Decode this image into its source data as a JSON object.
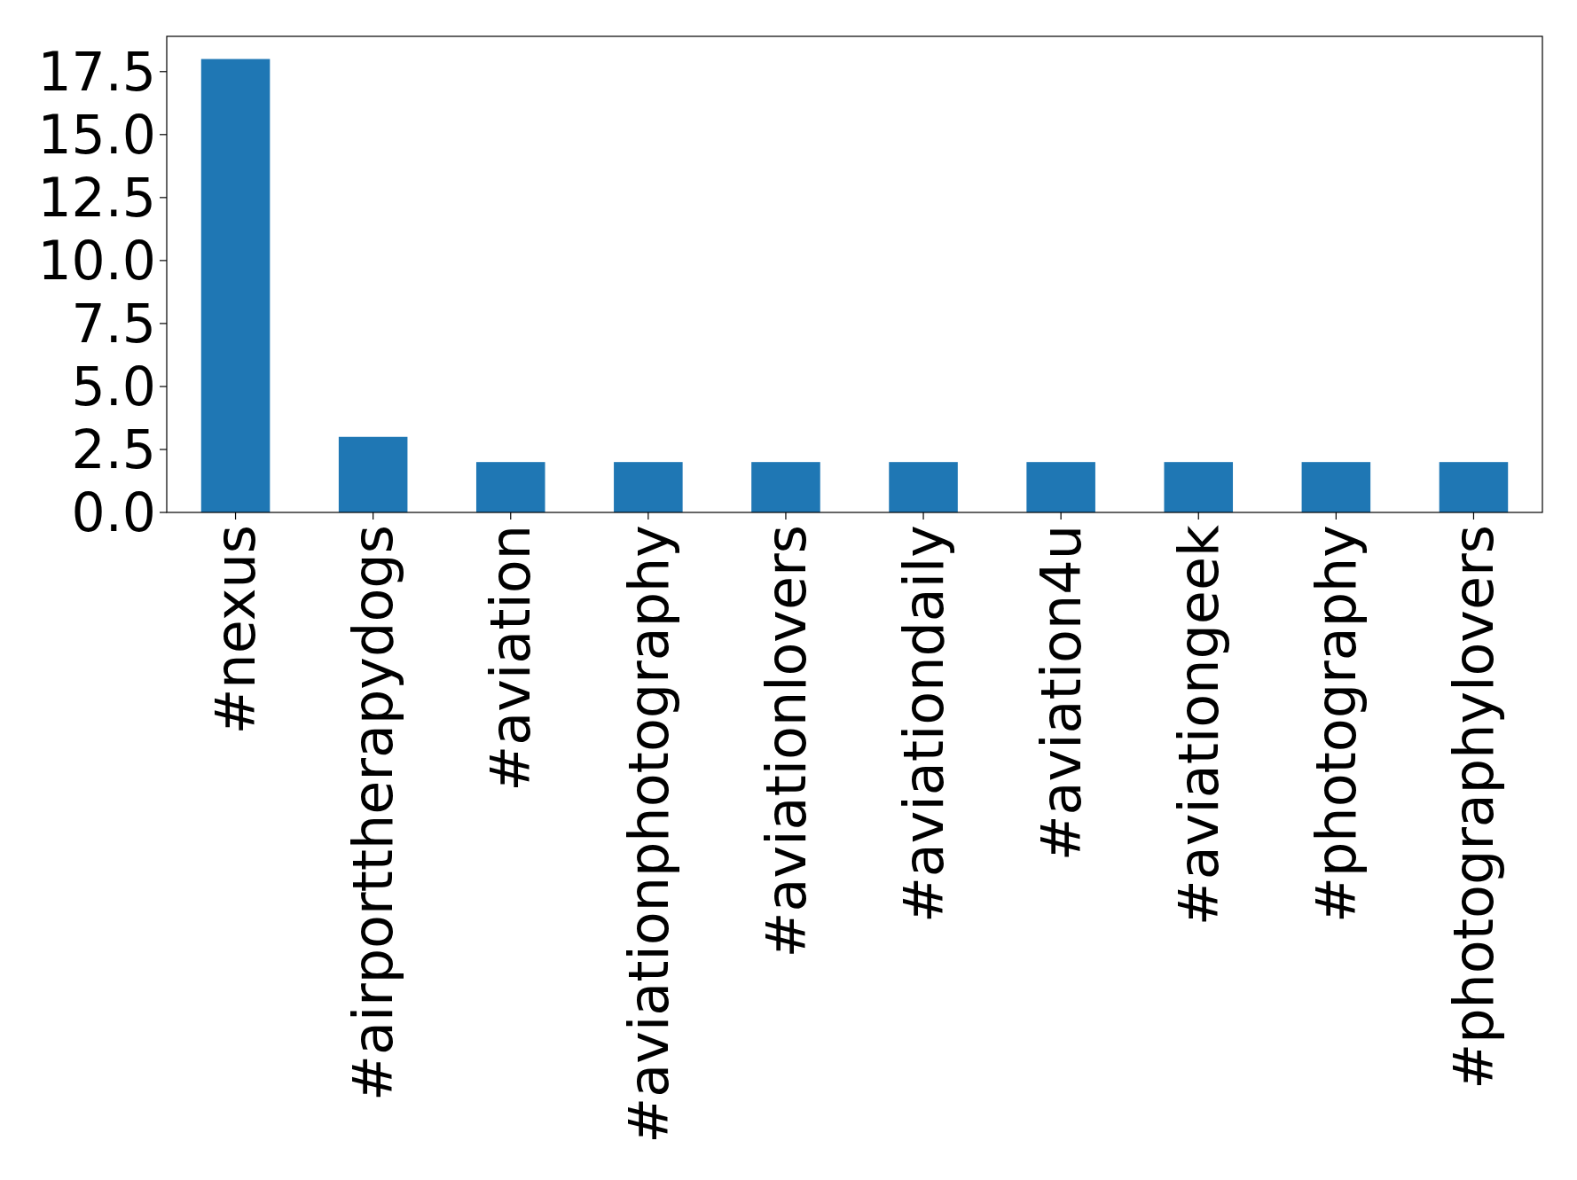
{
  "chart_data": {
    "type": "bar",
    "categories": [
      "#nexus",
      "#airporttherapydogs",
      "#aviation",
      "#aviationphotography",
      "#aviationlovers",
      "#aviationdaily",
      "#aviation4u",
      "#aviationgeek",
      "#photography",
      "#photographylovers"
    ],
    "values": [
      18,
      3,
      2,
      2,
      2,
      2,
      2,
      2,
      2,
      2
    ],
    "color": "#1f77b4",
    "ylim": [
      0,
      18.9
    ],
    "yticks": [
      {
        "value": 0,
        "label": "0.0"
      },
      {
        "value": 2.5,
        "label": "2.5"
      },
      {
        "value": 5,
        "label": "5.0"
      },
      {
        "value": 7.5,
        "label": "7.5"
      },
      {
        "value": 10,
        "label": "10.0"
      },
      {
        "value": 12.5,
        "label": "12.5"
      },
      {
        "value": 15,
        "label": "15.0"
      },
      {
        "value": 17.5,
        "label": "17.5"
      }
    ],
    "grid": false
  }
}
